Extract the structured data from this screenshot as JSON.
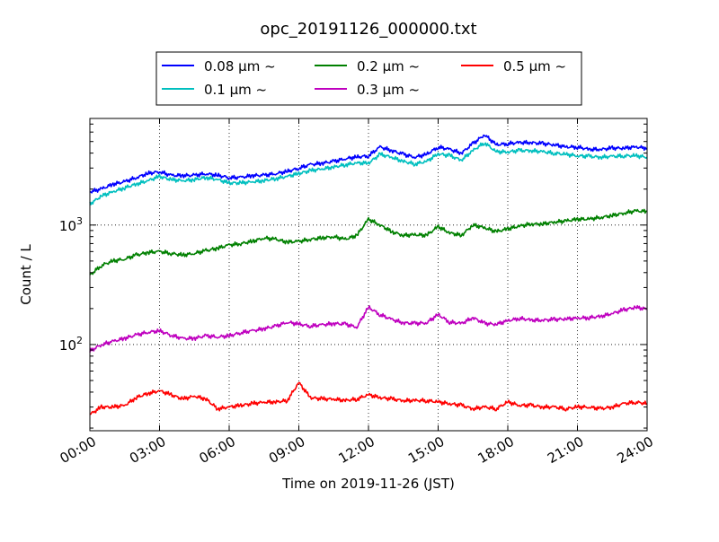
{
  "chart_data": {
    "type": "line",
    "title": "opc_20191126_000000.txt",
    "xlabel": "Time on 2019-11-26 (JST)",
    "ylabel": "Count / L",
    "yscale": "log",
    "ylim": [
      19,
      7800
    ],
    "x_ticks": [
      "00:00",
      "03:00",
      "06:00",
      "09:00",
      "12:00",
      "15:00",
      "18:00",
      "21:00",
      "24:00"
    ],
    "y_ticks": [
      {
        "value": 100,
        "base": "10",
        "exp": "2"
      },
      {
        "value": 1000,
        "base": "10",
        "exp": "3"
      }
    ],
    "grid": true,
    "legend_position": "top-center",
    "x_hours": [
      0,
      0.5,
      1,
      1.5,
      2,
      2.5,
      3,
      3.5,
      4,
      4.5,
      5,
      5.5,
      6,
      6.5,
      7,
      7.5,
      8,
      8.5,
      9,
      9.5,
      10,
      10.5,
      11,
      11.5,
      12,
      12.5,
      13,
      13.5,
      14,
      14.5,
      15,
      15.5,
      16,
      16.5,
      17,
      17.5,
      18,
      18.5,
      19,
      19.5,
      20,
      20.5,
      21,
      21.5,
      22,
      22.5,
      23,
      23.5,
      24
    ],
    "series": [
      {
        "name": "0.08 μm ~",
        "color": "#0000ff",
        "values": [
          1900,
          2000,
          2200,
          2300,
          2500,
          2700,
          2800,
          2600,
          2600,
          2600,
          2700,
          2600,
          2500,
          2500,
          2600,
          2600,
          2700,
          2800,
          3000,
          3200,
          3300,
          3400,
          3600,
          3700,
          3800,
          4500,
          4200,
          3900,
          3700,
          3900,
          4500,
          4300,
          4000,
          4800,
          5700,
          4700,
          4800,
          4900,
          4900,
          4800,
          4700,
          4500,
          4500,
          4300,
          4300,
          4400,
          4400,
          4500,
          4400
        ]
      },
      {
        "name": "0.1 μm ~",
        "color": "#00bfbf",
        "values": [
          1500,
          1750,
          1900,
          2050,
          2200,
          2350,
          2550,
          2400,
          2350,
          2400,
          2500,
          2400,
          2250,
          2250,
          2300,
          2350,
          2450,
          2550,
          2700,
          2850,
          2950,
          3050,
          3200,
          3300,
          3300,
          3900,
          3700,
          3400,
          3250,
          3400,
          3950,
          3800,
          3500,
          4200,
          4900,
          4100,
          4100,
          4200,
          4200,
          4100,
          4000,
          3900,
          3800,
          3750,
          3700,
          3750,
          3800,
          3800,
          3700
        ]
      },
      {
        "name": "0.2 μm ~",
        "color": "#008000",
        "values": [
          380,
          460,
          500,
          520,
          560,
          590,
          600,
          580,
          560,
          580,
          610,
          640,
          680,
          700,
          730,
          780,
          760,
          720,
          730,
          760,
          780,
          800,
          760,
          820,
          1120,
          1000,
          880,
          820,
          830,
          820,
          970,
          860,
          820,
          1000,
          950,
          880,
          930,
          980,
          1020,
          1020,
          1060,
          1080,
          1120,
          1120,
          1160,
          1200,
          1260,
          1310,
          1300
        ]
      },
      {
        "name": "0.3 μm ~",
        "color": "#bf00bf",
        "values": [
          88,
          100,
          106,
          113,
          120,
          127,
          130,
          120,
          112,
          113,
          118,
          116,
          118,
          126,
          130,
          136,
          142,
          154,
          148,
          143,
          146,
          150,
          148,
          140,
          205,
          178,
          162,
          152,
          150,
          152,
          178,
          154,
          150,
          168,
          150,
          148,
          158,
          166,
          160,
          160,
          162,
          164,
          166,
          168,
          172,
          182,
          195,
          205,
          198
        ]
      },
      {
        "name": "0.5 μm ~",
        "color": "#ff0000",
        "values": [
          26,
          30,
          30,
          31,
          36,
          39,
          41,
          38,
          35,
          37,
          35,
          29,
          30,
          31,
          32,
          33,
          33,
          34,
          48,
          36,
          35,
          35,
          34,
          35,
          38,
          36,
          35,
          34,
          34,
          34,
          33,
          32,
          31,
          29,
          30,
          29,
          33,
          31,
          31,
          30,
          30,
          29,
          30,
          30,
          29,
          30,
          32,
          33,
          32
        ]
      }
    ]
  }
}
